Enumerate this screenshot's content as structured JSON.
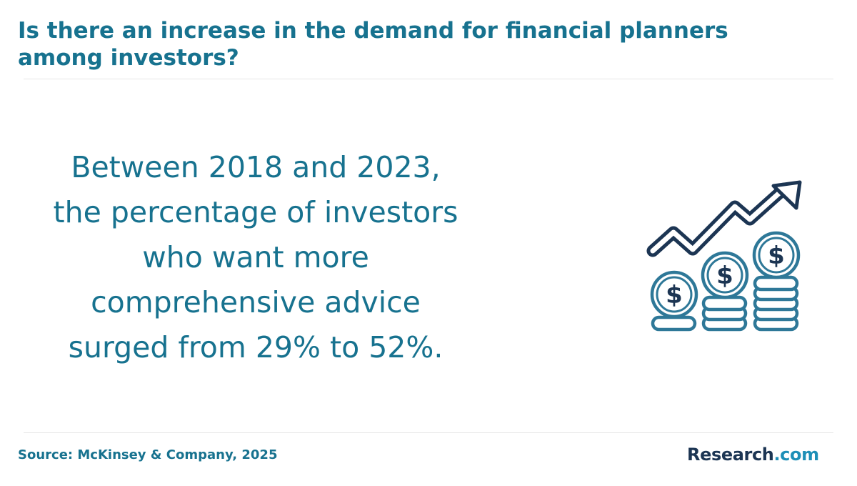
{
  "header": {
    "title": "Is there an increase in the demand for financial planners among investors?"
  },
  "statement": {
    "lines": [
      "Between 2018 and 2023,",
      "the percentage of investors",
      "who want more",
      "comprehensive advice",
      "surged from 29% to 52%."
    ]
  },
  "illustration": {
    "icon": "rising-money-coins-icon",
    "coin_symbol": "$"
  },
  "footer": {
    "source": "Source: McKinsey & Company, 2025",
    "logo_brand": "Research",
    "logo_tld": ".com"
  },
  "colors": {
    "accent": "#17728f",
    "icon_dark": "#1c3553",
    "icon_blue": "#2e7898",
    "logo_dark": "#1c3553",
    "logo_blue": "#1e8fb7"
  }
}
